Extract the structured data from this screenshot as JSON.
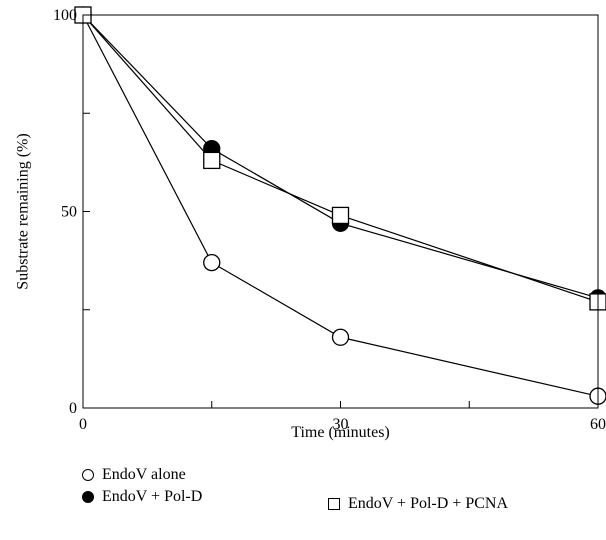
{
  "chart_data": {
    "type": "line",
    "xlabel": "Time (minutes)",
    "ylabel": "Substrate remaining (%)",
    "xlim": [
      0,
      60
    ],
    "ylim": [
      0,
      100
    ],
    "x_ticks": [
      {
        "value": 0,
        "label": "0"
      },
      {
        "value": 15,
        "label": ""
      },
      {
        "value": 30,
        "label": "30"
      },
      {
        "value": 45,
        "label": ""
      },
      {
        "value": 60,
        "label": "60"
      }
    ],
    "y_ticks": [
      {
        "value": 0,
        "label": "0"
      },
      {
        "value": 25,
        "label": ""
      },
      {
        "value": 50,
        "label": "50"
      },
      {
        "value": 75,
        "label": ""
      },
      {
        "value": 100,
        "label": "100"
      }
    ],
    "grid": false,
    "legend_position": "bottom",
    "series": [
      {
        "name": "EndoV alone",
        "marker": "circle-open",
        "x": [
          0,
          15,
          30,
          60
        ],
        "y": [
          100,
          37,
          18,
          3
        ]
      },
      {
        "name": "EndoV + Pol-D",
        "marker": "circle-filled",
        "x": [
          0,
          15,
          30,
          60
        ],
        "y": [
          100,
          66,
          47,
          28
        ]
      },
      {
        "name": "EndoV + Pol-D + PCNA",
        "marker": "square-open",
        "x": [
          0,
          15,
          30,
          60
        ],
        "y": [
          100,
          63,
          49,
          27
        ]
      }
    ]
  }
}
